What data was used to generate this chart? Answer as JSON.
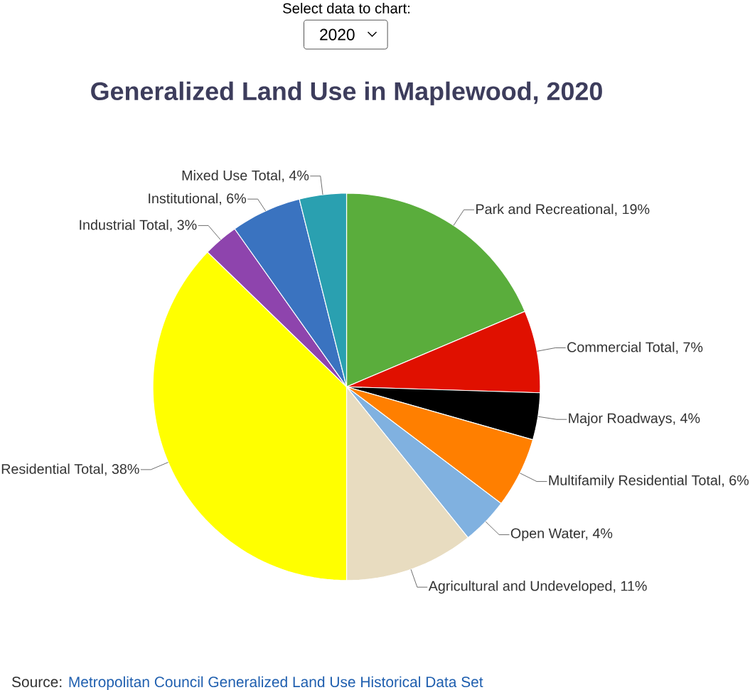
{
  "chart_data": {
    "type": "pie",
    "title": "Generalized Land Use in Maplewood, 2020",
    "categories": [
      "Park and Recreational, 19%",
      "Commercial Total, 7%",
      "Major Roadways, 4%",
      "Multifamily Residential Total, 6%",
      "Open Water, 4%",
      "Agricultural and Undeveloped, 11%",
      "Residential Total, 38%",
      "Industrial Total, 3%",
      "Institutional, 6%",
      "Mixed Use Total, 4%"
    ],
    "values": [
      19,
      7,
      4,
      6,
      4,
      11,
      38,
      3,
      6,
      4
    ],
    "colors": [
      "#5aad3c",
      "#e01000",
      "#000000",
      "#ff7f00",
      "#80b1e0",
      "#e8dcc0",
      "#ffff00",
      "#8e44ad",
      "#3a73c0",
      "#2aa0b0"
    ],
    "annotations": [
      "Select data to chart:",
      "2020",
      "Source:",
      "Metropolitan Council Generalized Land Use Historical Data Set"
    ]
  }
}
